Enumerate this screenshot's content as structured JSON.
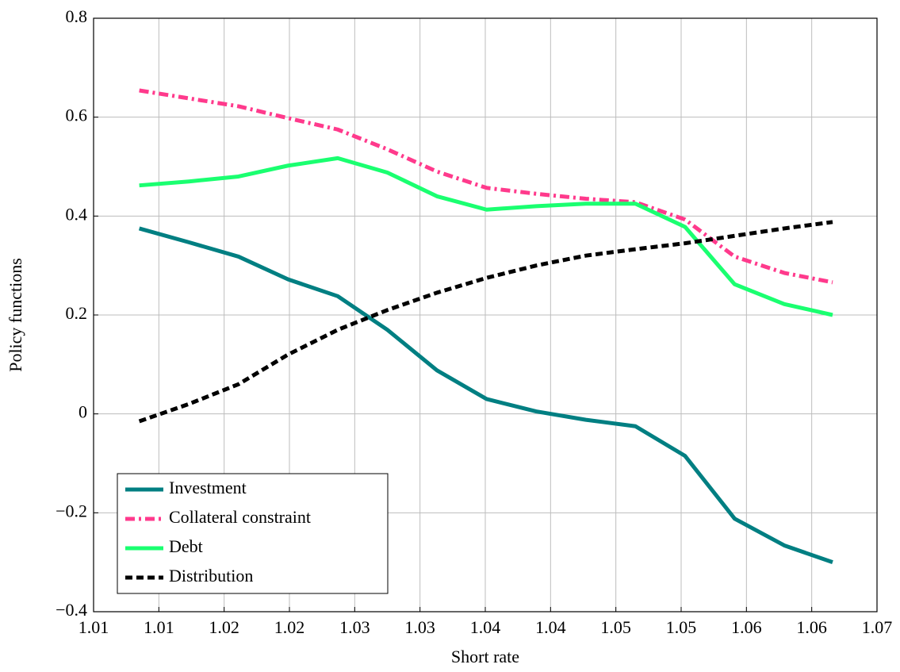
{
  "chart_data": {
    "type": "line",
    "xlabel": "Short rate",
    "ylabel": "Policy functions",
    "x": [
      1.0085,
      1.0123,
      1.0161,
      1.0199,
      1.0237,
      1.0275,
      1.0313,
      1.0351,
      1.0389,
      1.0427,
      1.0465,
      1.0503,
      1.0541,
      1.0579,
      1.0616
    ],
    "series": [
      {
        "name": "Investment",
        "color": "#007f82",
        "dash": "solid",
        "values": [
          0.375,
          0.347,
          0.318,
          0.272,
          0.238,
          0.17,
          0.088,
          0.03,
          0.005,
          -0.012,
          -0.025,
          -0.085,
          -0.212,
          -0.266,
          -0.3
        ]
      },
      {
        "name": "Collateral constraint",
        "color": "#ff3a8c",
        "dash": "dashdot",
        "values": [
          0.654,
          0.638,
          0.622,
          0.598,
          0.575,
          0.535,
          0.49,
          0.457,
          0.445,
          0.435,
          0.428,
          0.393,
          0.318,
          0.285,
          0.266
        ]
      },
      {
        "name": "Debt",
        "color": "#1aff70",
        "dash": "solid",
        "values": [
          0.462,
          0.47,
          0.48,
          0.502,
          0.517,
          0.488,
          0.44,
          0.413,
          0.42,
          0.425,
          0.425,
          0.378,
          0.262,
          0.222,
          0.2
        ]
      },
      {
        "name": "Distribution",
        "color": "#000000",
        "dash": "dashed",
        "values": [
          -0.015,
          0.02,
          0.06,
          0.12,
          0.17,
          0.21,
          0.245,
          0.275,
          0.3,
          0.32,
          0.333,
          0.345,
          0.36,
          0.375,
          0.388
        ]
      }
    ],
    "xlim": [
      1.005,
      1.065
    ],
    "xticks": [
      {
        "value": 1.005,
        "label": "1.01"
      },
      {
        "value": 1.01,
        "label": "1.01"
      },
      {
        "value": 1.015,
        "label": "1.02"
      },
      {
        "value": 1.02,
        "label": "1.02"
      },
      {
        "value": 1.025,
        "label": "1.03"
      },
      {
        "value": 1.03,
        "label": "1.03"
      },
      {
        "value": 1.035,
        "label": "1.04"
      },
      {
        "value": 1.04,
        "label": "1.04"
      },
      {
        "value": 1.045,
        "label": "1.05"
      },
      {
        "value": 1.05,
        "label": "1.05"
      },
      {
        "value": 1.055,
        "label": "1.06"
      },
      {
        "value": 1.06,
        "label": "1.06"
      },
      {
        "value": 1.065,
        "label": "1.07"
      }
    ],
    "ylim": [
      -0.4,
      0.8
    ],
    "yticks": [
      {
        "value": -0.4,
        "label": "−0.4"
      },
      {
        "value": -0.2,
        "label": "−0.2"
      },
      0,
      0.2,
      0.4,
      0.6,
      0.8
    ],
    "grid": true,
    "legend": "lower left"
  }
}
